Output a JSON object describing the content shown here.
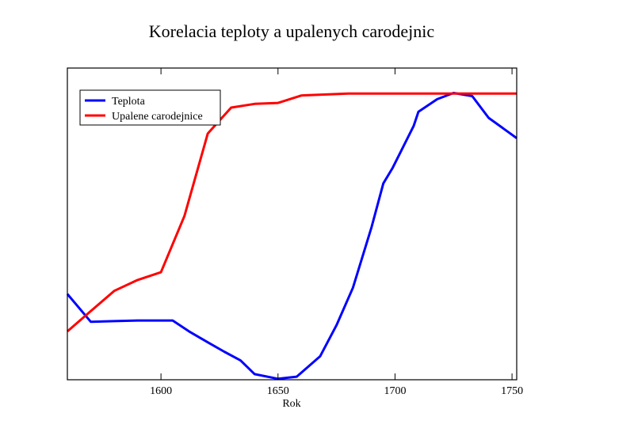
{
  "chart_data": {
    "type": "line",
    "title": "Korelacia teploty a upalenych carodejnic",
    "xlabel": "Rok",
    "ylabel": "",
    "xlim": [
      1560,
      1752
    ],
    "ylim": [
      0,
      1
    ],
    "x_ticks": [
      1600,
      1650,
      1700,
      1750
    ],
    "y_tick_labels": "none",
    "grid": false,
    "legend_position": "top-left",
    "series": [
      {
        "name": "Teplota",
        "color": "#0000ff",
        "x": [
          1560,
          1570,
          1580,
          1590,
          1600,
          1605,
          1612,
          1620,
          1627,
          1634,
          1640,
          1650,
          1658,
          1668,
          1675,
          1682,
          1690,
          1695,
          1699,
          1704,
          1708,
          1710,
          1718,
          1725,
          1733,
          1740,
          1752
        ],
        "y": [
          0.275,
          0.186,
          0.188,
          0.19,
          0.19,
          0.19,
          0.155,
          0.12,
          0.09,
          0.062,
          0.018,
          0.003,
          0.01,
          0.075,
          0.175,
          0.295,
          0.49,
          0.63,
          0.68,
          0.755,
          0.815,
          0.86,
          0.9,
          0.92,
          0.91,
          0.84,
          0.775
        ]
      },
      {
        "name": "Upalene carodejnice",
        "color": "#ff0000",
        "x": [
          1560,
          1570,
          1580,
          1590,
          1600,
          1610,
          1620,
          1630,
          1640,
          1650,
          1660,
          1680,
          1700,
          1720,
          1752
        ],
        "y": [
          0.155,
          0.22,
          0.285,
          0.32,
          0.345,
          0.525,
          0.79,
          0.873,
          0.885,
          0.888,
          0.912,
          0.918,
          0.918,
          0.918,
          0.918
        ]
      }
    ]
  }
}
